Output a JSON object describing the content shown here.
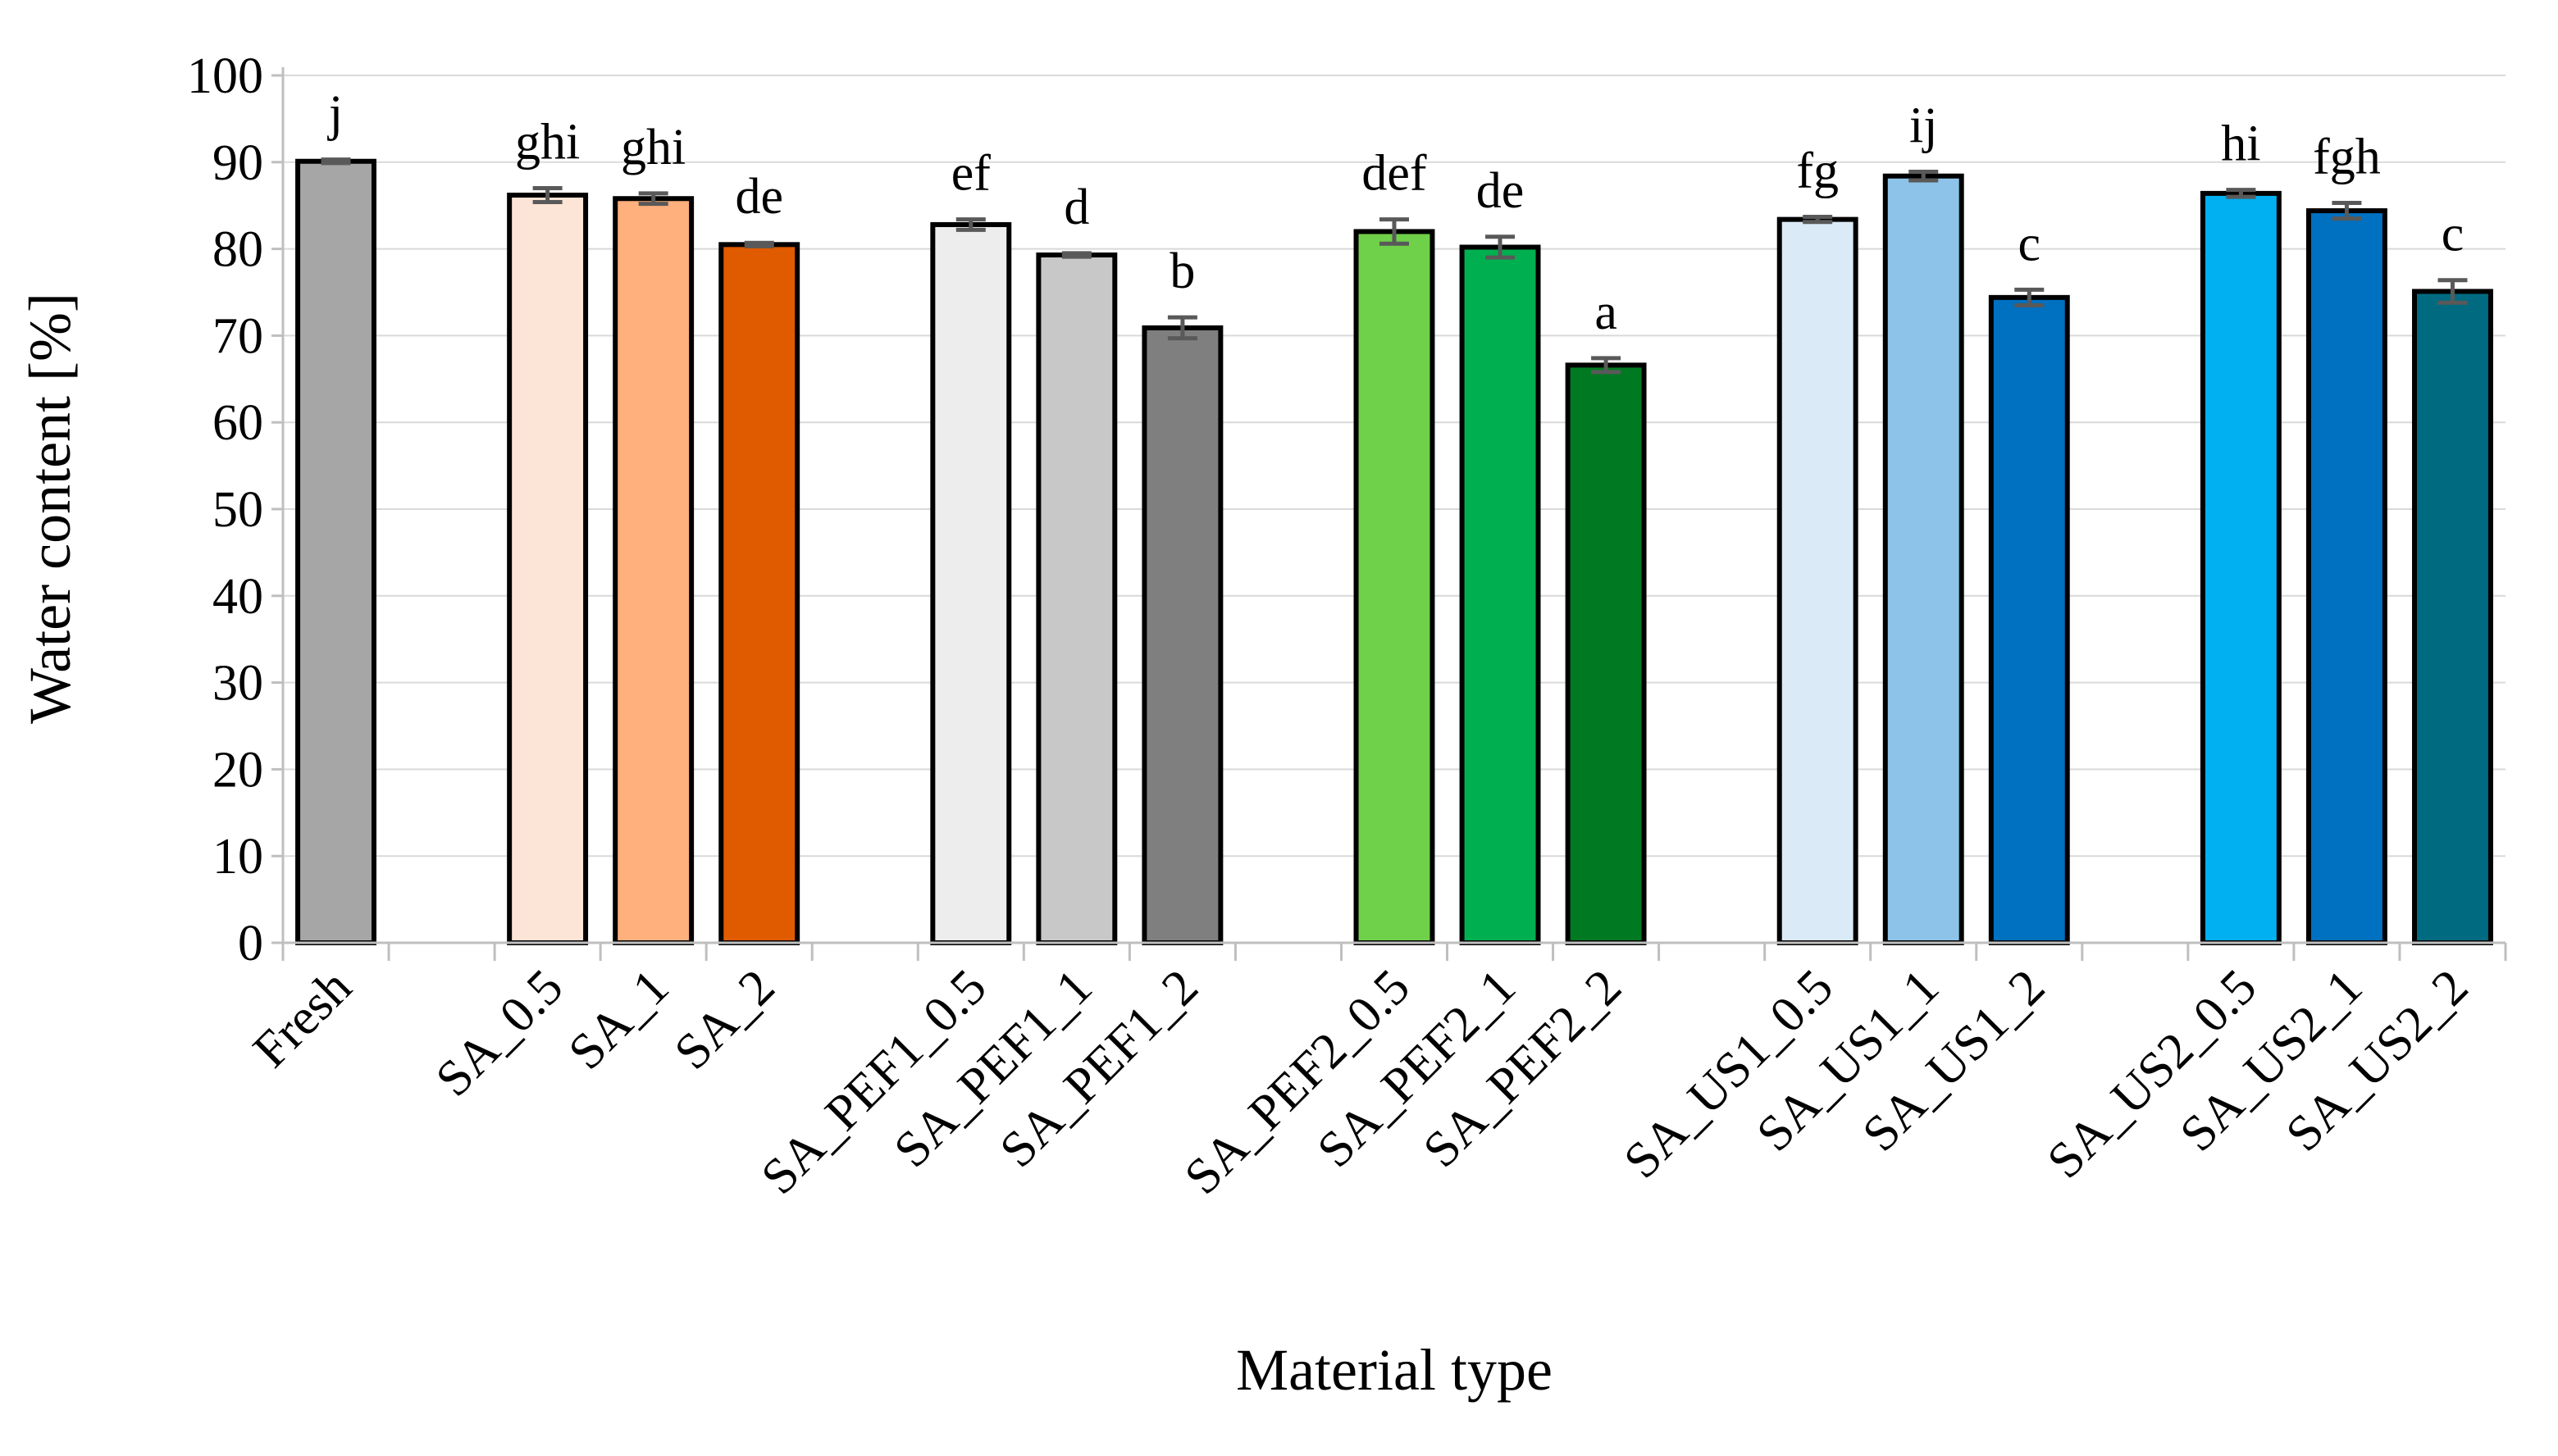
{
  "chart_data": {
    "type": "bar",
    "title": "",
    "xlabel": "Material type",
    "ylabel": "Water content [%]",
    "ylim": [
      0,
      100
    ],
    "ytick_step": 10,
    "yticks": [
      "0",
      "10",
      "20",
      "30",
      "40",
      "50",
      "60",
      "70",
      "80",
      "90",
      "100"
    ],
    "grid": true,
    "legend": "none",
    "categories": [
      "Fresh",
      "",
      "SA_0.5",
      "SA_1",
      "SA_2",
      "",
      "SA_PEF1_0.5",
      "SA_PEF1_1",
      "SA_PEF1_2",
      "",
      "SA_PEF2_0.5",
      "SA_PEF2_1",
      "SA_PEF2_2",
      "",
      "SA_US1_0.5",
      "SA_US1_1",
      "SA_US1_2",
      "",
      "SA_US2_0.5",
      "SA_US2_1",
      "SA_US2_2"
    ],
    "values": [
      90.1,
      null,
      86.2,
      85.8,
      80.5,
      null,
      82.8,
      79.3,
      70.9,
      null,
      82.0,
      80.2,
      66.6,
      null,
      83.4,
      88.4,
      74.4,
      null,
      86.4,
      84.4,
      75.1
    ],
    "errors": [
      0.2,
      null,
      0.8,
      0.6,
      0.2,
      null,
      0.6,
      0.2,
      1.2,
      null,
      1.4,
      1.2,
      0.8,
      null,
      0.3,
      0.5,
      0.9,
      null,
      0.4,
      0.9,
      1.3
    ],
    "significance_labels": [
      "j",
      "",
      "ghi",
      "ghi",
      "de",
      "",
      "ef",
      "d",
      "b",
      "",
      "def",
      "de",
      "a",
      "",
      "fg",
      "ij",
      "c",
      "",
      "hi",
      "fgh",
      "c"
    ],
    "colors": [
      "#a6a6a6",
      null,
      "#fce4d6",
      "#ffb07d",
      "#e05a00",
      null,
      "#ededed",
      "#c8c8c8",
      "#7f7f7f",
      null,
      "#6fd04a",
      "#00b050",
      "#007a22",
      null,
      "#dbeaf7",
      "#8dc3e8",
      "#0070c0",
      null,
      "#00b0f0",
      "#0070c0",
      "#006b80"
    ]
  }
}
